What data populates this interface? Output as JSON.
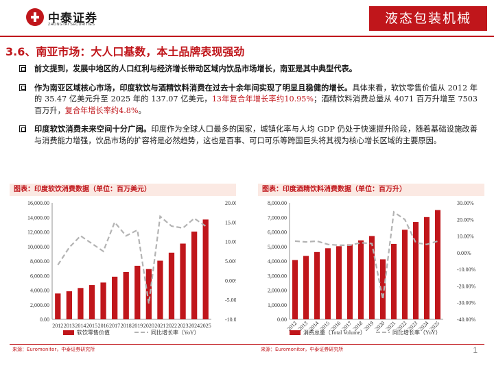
{
  "header": {
    "logo_cn": "中泰证券",
    "logo_en": "ZHONGTAI SECURITIES",
    "section": "液态包装机械"
  },
  "title": "3.6、南亚市场：大人口基数，本土品牌表现强劲",
  "bullets": [
    {
      "lead": "前文提到，发展中地区的人口红利与经济增长带动区域内饮品市场增长，南亚是其中典型代表。"
    },
    {
      "lead": "作为南亚区域核心市场，印度软饮与酒精饮料消费在过去十余年间实现了明显且稳健的增长。",
      "text1": "具体来看，软饮零售价值从 2012 年的 35.47 亿美元升至 2025 年的 137.07 亿美元，",
      "red1": "13年复合年增长率约10.95%",
      "text2": "；酒精饮料消费总量从 4071 百万升增至 7503 百万升，",
      "red2": "复合年增长率约4.8%",
      "text3": "。"
    },
    {
      "lead": "印度软饮消费未来空间十分广阔。",
      "text": "印度作为全球人口最多的国家，城镇化率与人均 GDP 仍处于快速提升阶段，随着基础设施改善与消费能力增强，饮品市场的扩容将是必然趋势，这也是百事、可口可乐等跨国巨头将其视为核心增长区域的主要原因。"
    }
  ],
  "colors": {
    "accent": "#c0161b",
    "bar": "#c0161b",
    "line": "#b3b3b3",
    "title_bg": "#fbe9e3"
  },
  "chart_data": [
    {
      "type": "bar",
      "title": "图表：印度软饮消费数据（单位：百万美元）",
      "categories": [
        "2012",
        "2013",
        "2014",
        "2015",
        "2016",
        "2017",
        "2018",
        "2019",
        "2020",
        "2021",
        "2022",
        "2023",
        "2024",
        "2025"
      ],
      "series": [
        {
          "name": "软饮零售价值",
          "type": "bar",
          "axis": "left",
          "values": [
            3547,
            3850,
            4300,
            4700,
            5050,
            5850,
            6500,
            7350,
            6900,
            8050,
            9150,
            10400,
            12050,
            13707
          ]
        },
        {
          "name": "同比增长率（YoY）",
          "type": "line",
          "axis": "right",
          "values": [
            0.04,
            0.085,
            0.115,
            0.095,
            0.075,
            0.15,
            0.115,
            0.13,
            -0.06,
            0.165,
            0.14,
            0.135,
            0.16,
            0.14
          ]
        }
      ],
      "left_ylim": [
        0,
        16000
      ],
      "left_ticks": [
        "0.00",
        "2,000.00",
        "4,000.00",
        "6,000.00",
        "8,000.00",
        "10,000.00",
        "12,000.00",
        "14,000.00",
        "16,000.00"
      ],
      "right_ylim": [
        -0.1,
        0.2
      ],
      "right_ticks": [
        "-10.00%",
        "-5.00%",
        "0.00%",
        "5.00%",
        "10.00%",
        "15.00%",
        "20.00%"
      ],
      "source": "来源：Euromonitor，中泰证券研究所"
    },
    {
      "type": "bar",
      "title": "图表：印度酒精饮料消费数据（单位：百万升）",
      "categories": [
        "2012",
        "2013",
        "2014",
        "2015",
        "2016",
        "2017",
        "2018",
        "2019",
        "2020",
        "2021",
        "2022",
        "2023",
        "2024",
        "2025"
      ],
      "series": [
        {
          "name": "消费总量（Total Volume）",
          "type": "bar",
          "axis": "left",
          "values": [
            4071,
            4350,
            4620,
            4880,
            5020,
            5150,
            5420,
            5720,
            4120,
            5180,
            6150,
            6680,
            7020,
            7503
          ]
        },
        {
          "name": "同比增长率（YoY）",
          "type": "line",
          "axis": "right",
          "values": [
            0.07,
            0.065,
            0.07,
            0.05,
            0.045,
            0.045,
            0.06,
            0.055,
            -0.28,
            0.245,
            0.2,
            0.06,
            0.05,
            0.07
          ]
        }
      ],
      "left_ylim": [
        0,
        8000
      ],
      "left_ticks": [
        "0.00",
        "1,000.00",
        "2,000.00",
        "3,000.00",
        "4,000.00",
        "5,000.00",
        "6,000.00",
        "7,000.00",
        "8,000.00"
      ],
      "right_ylim": [
        -0.4,
        0.3
      ],
      "right_ticks": [
        "-40.00%",
        "-30.00%",
        "-20.00%",
        "-10.00%",
        "0.00%",
        "10.00%",
        "20.00%",
        "30.00%"
      ],
      "source": "来源：Euromonitor，中泰证券研究所"
    }
  ],
  "footer": {
    "page": "1"
  }
}
